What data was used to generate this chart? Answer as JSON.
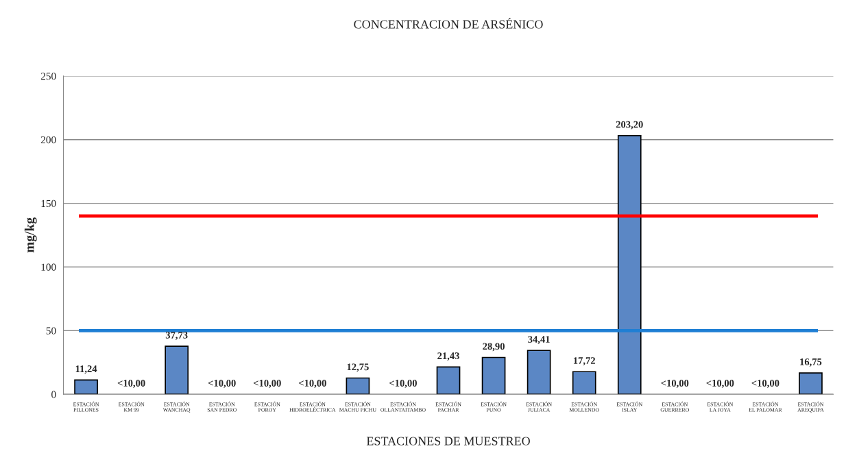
{
  "chart_data": {
    "type": "bar",
    "title": "CONCENTRACION DE ARSÉNICO",
    "xlabel": "ESTACIONES DE MUESTREO",
    "ylabel": "mg/kg",
    "categories": [
      "ESTACIÓN\nPILLONES",
      "ESTACIÓN\nKM 99",
      "ESTACIÓN\nWANCHAQ",
      "ESTACIÓN\nSAN PEDRO",
      "ESTACIÓN\nPOROY",
      "ESTACIÓN\nHIDROELÉCTRICA",
      "ESTACIÓN\nMACHU PICHU",
      "ESTACIÓN\nOLLANTAITAMBO",
      "ESTACIÓN\nPACHAR",
      "ESTACIÓN\nPUNO",
      "ESTACIÓN\nJULIACA",
      "ESTACIÓN\nMOLLENDO",
      "ESTACIÓN\nISLAY",
      "ESTACIÓN\nGUERRERO",
      "ESTACIÓN\nLA JOYA",
      "ESTACIÓN\nEL PALOMAR",
      "ESTACIÓN\nAREQUIPA"
    ],
    "values": [
      11.24,
      null,
      37.73,
      null,
      null,
      null,
      12.75,
      null,
      21.43,
      28.9,
      34.41,
      17.72,
      203.2,
      null,
      null,
      null,
      16.75
    ],
    "value_labels": [
      "11,24",
      "<10,00",
      "37,73",
      "<10,00",
      "<10,00",
      "<10,00",
      "12,75",
      "<10,00",
      "21,43",
      "28,90",
      "34,41",
      "17,72",
      "203,20",
      "<10,00",
      "<10,00",
      "<10,00",
      "16,75"
    ],
    "color": "#5b87c5",
    "ylim": [
      0,
      250
    ],
    "yticks": [
      0,
      50,
      100,
      150,
      200,
      250
    ],
    "grid": "y",
    "ref_lines": [
      {
        "axis": "y",
        "value": 140,
        "color": "#ff0000"
      },
      {
        "axis": "y",
        "value": 50,
        "color": "#1f7fd4"
      }
    ]
  }
}
